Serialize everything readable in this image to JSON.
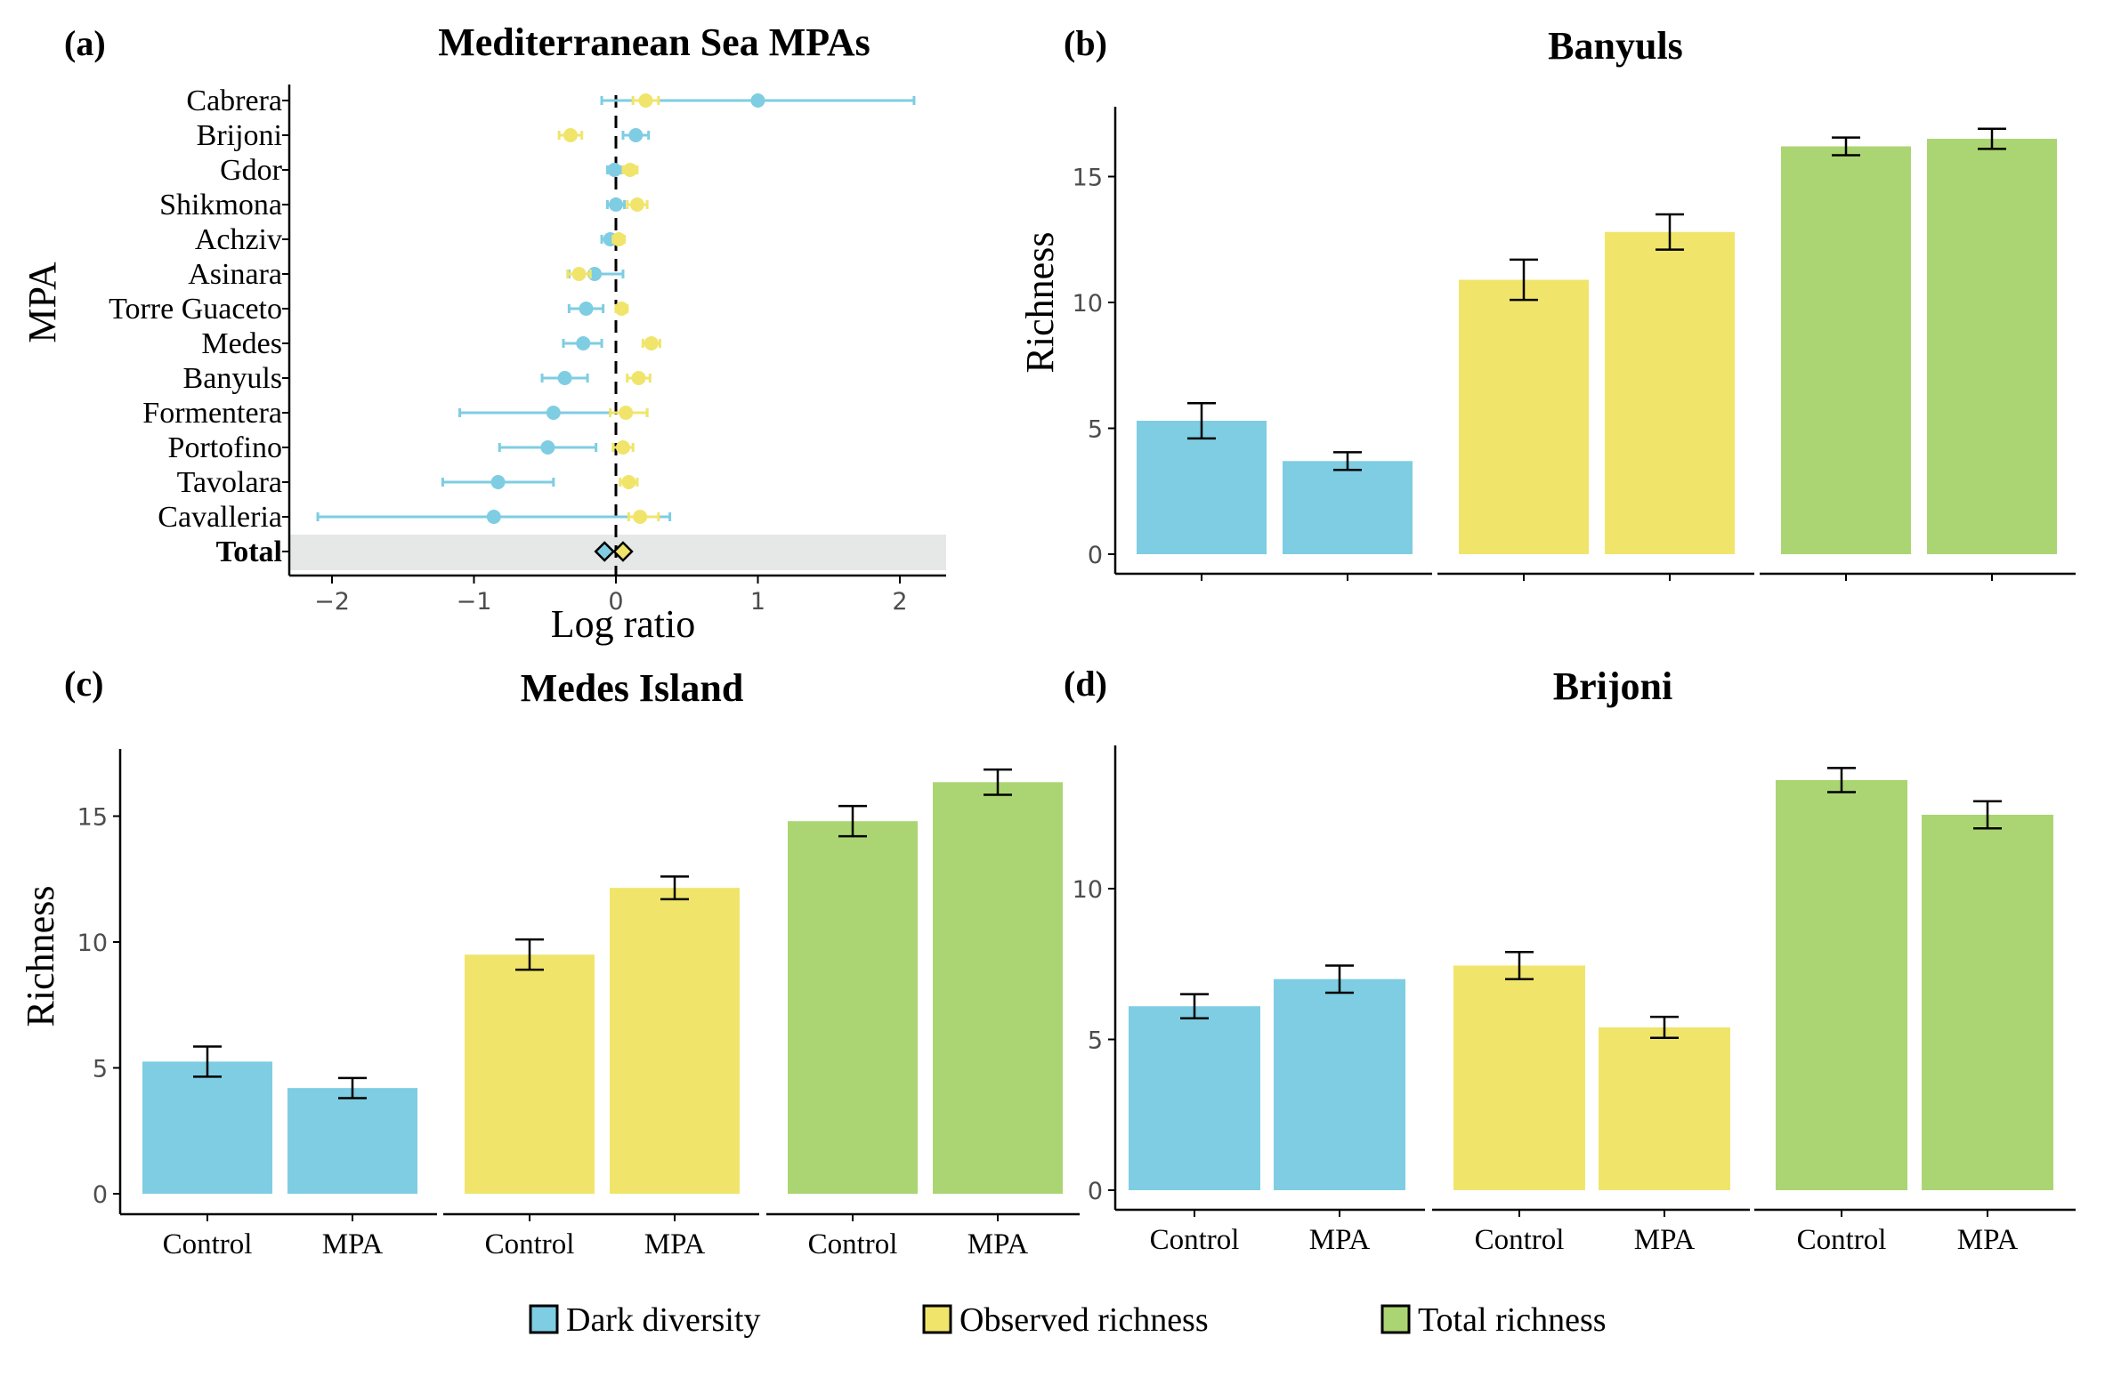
{
  "colors": {
    "dark_diversity": "#7ecde3",
    "observed_richness": "#f0e56a",
    "total_richness": "#abd572",
    "total_band": "#e6e8e7"
  },
  "legend": [
    {
      "label": "Dark diversity",
      "color": "#7ecde3"
    },
    {
      "label": "Observed richness",
      "color": "#f0e56a"
    },
    {
      "label": "Total richness",
      "color": "#abd572"
    }
  ],
  "chart_data": [
    {
      "panel": "(a)",
      "type": "scatter",
      "title": "Mediterranean Sea MPAs",
      "xlabel": "Log ratio",
      "ylabel": "MPA",
      "xlim": [
        -2.3,
        2.3
      ],
      "xticks": [
        -2,
        -1,
        0,
        1,
        2
      ],
      "xtick_labels": [
        "−2",
        "−1",
        "0",
        "1",
        "2"
      ],
      "reference_line": 0,
      "total_label": "Total",
      "categories": [
        "Cabrera",
        "Brijoni",
        "Gdor",
        "Shikmona",
        "Achziv",
        "Asinara",
        "Torre Guaceto",
        "Medes",
        "Banyuls",
        "Formentera",
        "Portofino",
        "Tavolara",
        "Cavalleria"
      ],
      "series": [
        {
          "name": "Dark diversity",
          "values": [
            1.0,
            0.14,
            -0.01,
            0.0,
            -0.04,
            -0.15,
            -0.21,
            -0.23,
            -0.36,
            -0.44,
            -0.48,
            -0.83,
            -0.86
          ],
          "lower": [
            -0.1,
            0.05,
            -0.06,
            -0.06,
            -0.1,
            -0.33,
            -0.33,
            -0.37,
            -0.52,
            -1.1,
            -0.82,
            -1.22,
            -2.1
          ],
          "upper": [
            2.1,
            0.23,
            0.04,
            0.06,
            0.02,
            0.05,
            -0.09,
            -0.1,
            -0.2,
            0.22,
            -0.14,
            -0.44,
            0.38
          ],
          "total": -0.08
        },
        {
          "name": "Observed richness",
          "values": [
            0.21,
            -0.32,
            0.1,
            0.15,
            0.02,
            -0.26,
            0.04,
            0.25,
            0.16,
            0.07,
            0.05,
            0.09,
            0.17
          ],
          "lower": [
            0.12,
            -0.4,
            0.05,
            0.08,
            -0.02,
            -0.34,
            0.0,
            0.19,
            0.08,
            -0.04,
            -0.02,
            0.03,
            0.09
          ],
          "upper": [
            0.3,
            -0.24,
            0.15,
            0.22,
            0.06,
            -0.18,
            0.08,
            0.31,
            0.24,
            0.22,
            0.12,
            0.15,
            0.3
          ],
          "total": 0.05
        }
      ]
    },
    {
      "panel": "(b)",
      "type": "bar",
      "title": "Banyuls",
      "ylabel": "Richness",
      "ylim": [
        0,
        17.5
      ],
      "yticks": [
        0,
        5,
        10,
        15
      ],
      "show_category_labels": false,
      "categories": [
        "Control",
        "MPA"
      ],
      "series": [
        {
          "name": "Dark diversity",
          "values": [
            5.3,
            3.7
          ],
          "errors": [
            0.7,
            0.35
          ]
        },
        {
          "name": "Observed richness",
          "values": [
            10.9,
            12.8
          ],
          "errors": [
            0.8,
            0.7
          ]
        },
        {
          "name": "Total richness",
          "values": [
            16.2,
            16.5
          ],
          "errors": [
            0.35,
            0.4
          ]
        }
      ]
    },
    {
      "panel": "(c)",
      "type": "bar",
      "title": "Medes Island",
      "ylabel": "Richness",
      "ylim": [
        0,
        17.5
      ],
      "yticks": [
        0,
        5,
        10,
        15
      ],
      "show_category_labels": true,
      "categories": [
        "Control",
        "MPA"
      ],
      "series": [
        {
          "name": "Dark diversity",
          "values": [
            5.25,
            4.2
          ],
          "errors": [
            0.6,
            0.4
          ]
        },
        {
          "name": "Observed richness",
          "values": [
            9.5,
            12.15
          ],
          "errors": [
            0.6,
            0.45
          ]
        },
        {
          "name": "Total richness",
          "values": [
            14.8,
            16.35
          ],
          "errors": [
            0.6,
            0.5
          ]
        }
      ]
    },
    {
      "panel": "(d)",
      "type": "bar",
      "title": "Brijoni",
      "ylabel": "",
      "ylim": [
        0,
        14.5
      ],
      "yticks": [
        0,
        5,
        10
      ],
      "show_category_labels": true,
      "categories": [
        "Control",
        "MPA"
      ],
      "series": [
        {
          "name": "Dark diversity",
          "values": [
            6.1,
            7.0
          ],
          "errors": [
            0.4,
            0.45
          ]
        },
        {
          "name": "Observed richness",
          "values": [
            7.45,
            5.4
          ],
          "errors": [
            0.45,
            0.35
          ]
        },
        {
          "name": "Total richness",
          "values": [
            13.6,
            12.45
          ],
          "errors": [
            0.4,
            0.45
          ]
        }
      ]
    }
  ]
}
